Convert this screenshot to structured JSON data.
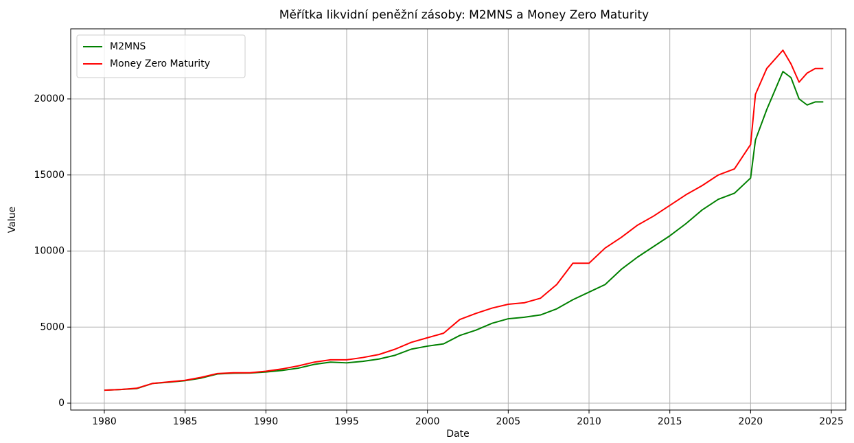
{
  "chart_data": {
    "type": "line",
    "title": "Měřítka likvidní peněžní zásoby: M2MNS a Money Zero Maturity",
    "x_label": "Date",
    "y_label": "Value",
    "x": [
      1980,
      1981,
      1982,
      1983,
      1984,
      1985,
      1986,
      1987,
      1988,
      1989,
      1990,
      1991,
      1992,
      1993,
      1994,
      1995,
      1996,
      1997,
      1998,
      1999,
      2000,
      2001,
      2002,
      2003,
      2004,
      2005,
      2006,
      2007,
      2008,
      2009,
      2010,
      2011,
      2012,
      2013,
      2014,
      2015,
      2016,
      2017,
      2018,
      2019,
      2020,
      2020.3,
      2021,
      2022,
      2022.5,
      2023,
      2023.5,
      2024,
      2024.5
    ],
    "series": [
      {
        "name": "M2MNS",
        "color": "#008000",
        "values": [
          850,
          900,
          960,
          1300,
          1380,
          1480,
          1650,
          1920,
          1970,
          1980,
          2050,
          2150,
          2300,
          2550,
          2700,
          2650,
          2750,
          2900,
          3150,
          3550,
          3750,
          3900,
          4450,
          4800,
          5250,
          5550,
          5650,
          5800,
          6200,
          6800,
          7300,
          7800,
          8800,
          9600,
          10300,
          11000,
          11800,
          12700,
          13400,
          13800,
          14800,
          17300,
          19300,
          21800,
          21400,
          20000,
          19600,
          19800,
          19800
        ]
      },
      {
        "name": "Money Zero Maturity",
        "color": "#ff0000",
        "values": [
          850,
          900,
          980,
          1300,
          1400,
          1500,
          1700,
          1950,
          2000,
          2000,
          2100,
          2250,
          2450,
          2700,
          2850,
          2850,
          3000,
          3200,
          3550,
          4000,
          4300,
          4600,
          5500,
          5900,
          6250,
          6500,
          6600,
          6900,
          7800,
          9200,
          9200,
          10200,
          10900,
          11700,
          12300,
          13000,
          13700,
          14300,
          15000,
          15400,
          17000,
          20300,
          22000,
          23200,
          22300,
          21100,
          21700,
          22000,
          22000
        ]
      }
    ],
    "xlim": [
      1977.92,
      2025.89
    ],
    "xticks": [
      1980,
      1985,
      1990,
      1995,
      2000,
      2005,
      2010,
      2015,
      2020,
      2025
    ],
    "ylim": [
      -451,
      24605
    ],
    "yticks": [
      0,
      5000,
      10000,
      15000,
      20000
    ],
    "grid": true,
    "legend": "upper left"
  }
}
